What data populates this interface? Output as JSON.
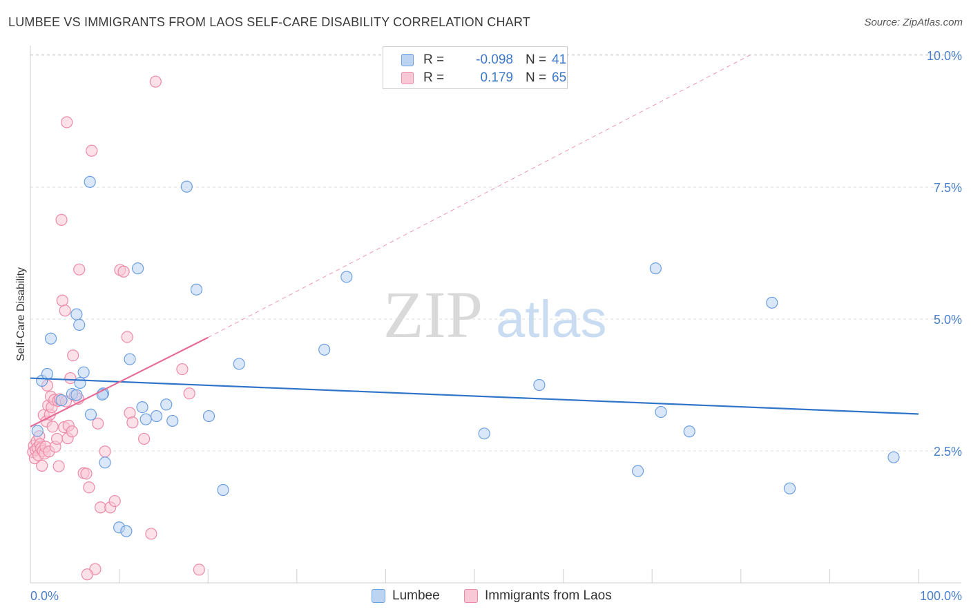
{
  "header": {
    "title": "LUMBEE VS IMMIGRANTS FROM LAOS SELF-CARE DISABILITY CORRELATION CHART",
    "source": "Source: ZipAtlas.com"
  },
  "watermark": {
    "zip": "ZIP",
    "atlas": "atlas"
  },
  "legend": {
    "rows": [
      {
        "r_label": "R =",
        "r_value": "-0.098",
        "n_label": "N =",
        "n_value": "41"
      },
      {
        "r_label": "R =",
        "r_value": "0.179",
        "n_label": "N =",
        "n_value": "65"
      }
    ]
  },
  "bottom_legend": {
    "items": [
      "Lumbee",
      "Immigrants from Laos"
    ]
  },
  "chart_data": {
    "type": "scatter",
    "ylabel": "Self-Care Disability",
    "xlabel": "",
    "xlim": [
      0,
      100
    ],
    "ylim": [
      0,
      10
    ],
    "x_tick_labels": [
      "0.0%",
      "100.0%"
    ],
    "y_ticks": [
      2.5,
      5.0,
      7.5,
      10.0
    ],
    "y_tick_labels": [
      "2.5%",
      "5.0%",
      "7.5%",
      "10.0%"
    ],
    "grid": true,
    "colors": {
      "lumbee_fill": "#bcd4f2",
      "lumbee_stroke": "#6b9fe0",
      "lumbee_line": "#2f74c8",
      "laos_fill": "#f9c8d6",
      "laos_stroke": "#ec8aa8",
      "laos_line": "#e76a96"
    },
    "series": [
      {
        "name": "Lumbee",
        "trend": {
          "x0": 0,
          "y0": 3.88,
          "x1": 100,
          "y1": 3.2
        },
        "points": [
          [
            0.8,
            2.88
          ],
          [
            1.3,
            3.83
          ],
          [
            1.9,
            3.96
          ],
          [
            2.3,
            4.63
          ],
          [
            4.7,
            3.58
          ],
          [
            5.2,
            5.09
          ],
          [
            5.5,
            4.89
          ],
          [
            5.6,
            3.79
          ],
          [
            6.0,
            3.99
          ],
          [
            5.2,
            3.56
          ],
          [
            6.7,
            7.6
          ],
          [
            6.8,
            3.19
          ],
          [
            8.2,
            3.59
          ],
          [
            8.4,
            2.28
          ],
          [
            10.0,
            1.05
          ],
          [
            10.8,
            0.98
          ],
          [
            11.2,
            4.24
          ],
          [
            12.1,
            5.96
          ],
          [
            12.6,
            3.33
          ],
          [
            13.0,
            3.1
          ],
          [
            14.2,
            3.16
          ],
          [
            15.3,
            3.38
          ],
          [
            16.0,
            3.07
          ],
          [
            17.6,
            7.51
          ],
          [
            18.7,
            5.56
          ],
          [
            20.1,
            3.16
          ],
          [
            21.7,
            1.76
          ],
          [
            23.5,
            4.15
          ],
          [
            33.1,
            4.42
          ],
          [
            35.6,
            5.8
          ],
          [
            51.1,
            2.83
          ],
          [
            57.3,
            3.75
          ],
          [
            68.4,
            2.12
          ],
          [
            70.4,
            5.96
          ],
          [
            71.0,
            3.24
          ],
          [
            74.2,
            2.87
          ],
          [
            83.5,
            5.31
          ],
          [
            85.5,
            1.79
          ],
          [
            97.2,
            2.38
          ],
          [
            8.1,
            3.57
          ],
          [
            3.5,
            3.46
          ]
        ]
      },
      {
        "name": "Immigrants from Laos",
        "trend": {
          "x0": 0,
          "y0": 2.96,
          "x1": 20.0,
          "y1": 4.65,
          "dash_x1": 81.0,
          "dash_y1": 10.0
        },
        "points": [
          [
            0.3,
            2.48
          ],
          [
            0.4,
            2.6
          ],
          [
            0.5,
            2.36
          ],
          [
            0.6,
            2.52
          ],
          [
            0.7,
            2.68
          ],
          [
            0.8,
            2.56
          ],
          [
            0.9,
            2.42
          ],
          [
            1.0,
            2.78
          ],
          [
            1.1,
            2.63
          ],
          [
            1.2,
            2.55
          ],
          [
            1.3,
            2.22
          ],
          [
            1.4,
            2.5
          ],
          [
            1.5,
            3.18
          ],
          [
            1.6,
            2.45
          ],
          [
            1.7,
            2.58
          ],
          [
            1.8,
            3.06
          ],
          [
            2.0,
            3.36
          ],
          [
            2.1,
            2.49
          ],
          [
            2.2,
            3.19
          ],
          [
            2.3,
            3.53
          ],
          [
            2.4,
            3.33
          ],
          [
            2.5,
            2.96
          ],
          [
            2.7,
            3.47
          ],
          [
            2.8,
            2.58
          ],
          [
            3.0,
            2.73
          ],
          [
            3.1,
            3.45
          ],
          [
            3.2,
            2.21
          ],
          [
            3.3,
            3.48
          ],
          [
            3.5,
            6.88
          ],
          [
            3.6,
            5.35
          ],
          [
            3.8,
            2.95
          ],
          [
            3.9,
            5.16
          ],
          [
            4.0,
            3.44
          ],
          [
            4.1,
            8.73
          ],
          [
            4.2,
            2.74
          ],
          [
            4.3,
            2.98
          ],
          [
            4.5,
            3.88
          ],
          [
            4.7,
            2.87
          ],
          [
            4.8,
            4.31
          ],
          [
            5.0,
            3.55
          ],
          [
            5.4,
            3.49
          ],
          [
            5.5,
            5.94
          ],
          [
            6.0,
            2.08
          ],
          [
            6.3,
            2.07
          ],
          [
            6.6,
            1.81
          ],
          [
            6.9,
            8.19
          ],
          [
            7.3,
            0.26
          ],
          [
            7.6,
            3.02
          ],
          [
            7.9,
            1.43
          ],
          [
            8.4,
            2.49
          ],
          [
            9.0,
            1.43
          ],
          [
            9.5,
            1.55
          ],
          [
            10.1,
            5.93
          ],
          [
            10.5,
            5.9
          ],
          [
            10.9,
            4.66
          ],
          [
            11.2,
            3.22
          ],
          [
            11.5,
            3.04
          ],
          [
            12.8,
            2.73
          ],
          [
            13.6,
            0.93
          ],
          [
            14.1,
            9.5
          ],
          [
            17.1,
            4.05
          ],
          [
            17.9,
            3.59
          ],
          [
            19.0,
            0.25
          ],
          [
            6.4,
            0.16
          ],
          [
            1.9,
            3.74
          ]
        ]
      }
    ]
  }
}
